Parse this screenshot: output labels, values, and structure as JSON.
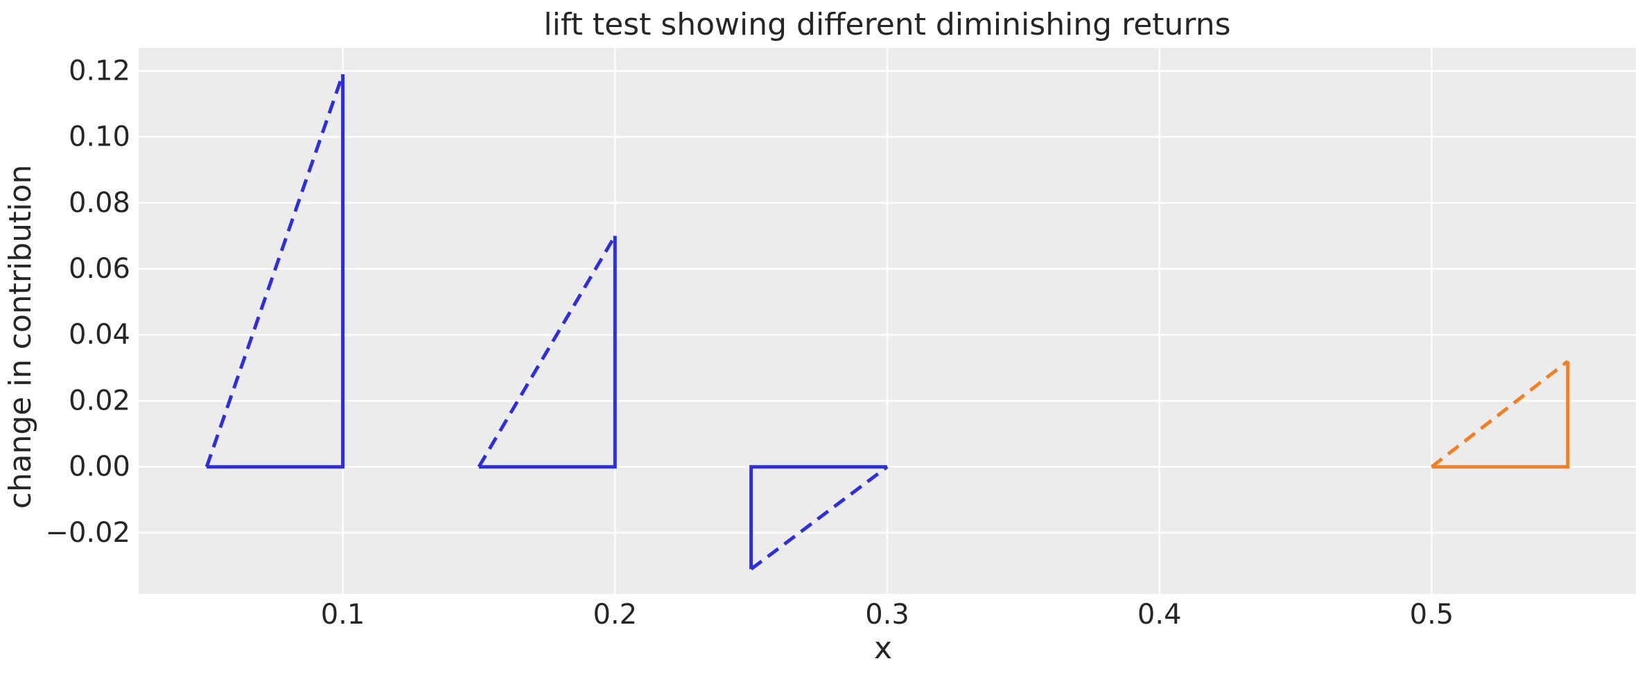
{
  "page": {
    "background_color": "#ffffff"
  },
  "chart_data": {
    "type": "line",
    "title": "lift test showing different diminishing returns",
    "xlabel": "x",
    "ylabel": "change in contribution",
    "xlim": [
      0.025,
      0.575
    ],
    "ylim": [
      -0.0385,
      0.127
    ],
    "grid": true,
    "legend": "none",
    "plot_bg_color": "#ececec",
    "grid_color": "#ffffff",
    "text_color": "#262626",
    "blue_color": "#2d2de1",
    "orange_color": "#f57e20",
    "x_ticks": [
      {
        "value": 0.1,
        "label": "0.1"
      },
      {
        "value": 0.2,
        "label": "0.2"
      },
      {
        "value": 0.3,
        "label": "0.3"
      },
      {
        "value": 0.4,
        "label": "0.4"
      },
      {
        "value": 0.5,
        "label": "0.5"
      }
    ],
    "y_ticks": [
      {
        "value": 0.12,
        "label": "0.12"
      },
      {
        "value": 0.1,
        "label": "0.10"
      },
      {
        "value": 0.08,
        "label": "0.08"
      },
      {
        "value": 0.06,
        "label": "0.06"
      },
      {
        "value": 0.04,
        "label": "0.04"
      },
      {
        "value": 0.02,
        "label": "0.02"
      },
      {
        "value": 0.0,
        "label": "0.00"
      },
      {
        "value": -0.02,
        "label": "−0.02"
      }
    ],
    "series": [
      {
        "name": "lift-triangle-1",
        "color": "#2d2de1",
        "x_start": 0.05,
        "x_end": 0.1,
        "change_in_contribution": 0.119,
        "segments": [
          {
            "style": "solid",
            "points": [
              [
                0.05,
                0
              ],
              [
                0.1,
                0
              ],
              [
                0.1,
                0.119
              ]
            ]
          },
          {
            "style": "dashed",
            "points": [
              [
                0.05,
                0
              ],
              [
                0.1,
                0.119
              ]
            ]
          }
        ]
      },
      {
        "name": "lift-triangle-2",
        "color": "#2d2de1",
        "x_start": 0.15,
        "x_end": 0.2,
        "change_in_contribution": 0.07,
        "segments": [
          {
            "style": "solid",
            "points": [
              [
                0.15,
                0
              ],
              [
                0.2,
                0
              ],
              [
                0.2,
                0.07
              ]
            ]
          },
          {
            "style": "dashed",
            "points": [
              [
                0.15,
                0
              ],
              [
                0.2,
                0.07
              ]
            ]
          }
        ]
      },
      {
        "name": "lift-triangle-3",
        "color": "#2d2de1",
        "x_start": 0.25,
        "x_end": 0.3,
        "change_in_contribution": -0.031,
        "segments": [
          {
            "style": "solid",
            "points": [
              [
                0.25,
                -0.031
              ],
              [
                0.25,
                0
              ],
              [
                0.3,
                0
              ]
            ]
          },
          {
            "style": "dashed",
            "points": [
              [
                0.25,
                -0.031
              ],
              [
                0.3,
                0
              ]
            ]
          }
        ]
      },
      {
        "name": "lift-triangle-4",
        "color": "#f57e20",
        "x_start": 0.5,
        "x_end": 0.55,
        "change_in_contribution": 0.032,
        "segments": [
          {
            "style": "solid",
            "points": [
              [
                0.5,
                0
              ],
              [
                0.55,
                0
              ],
              [
                0.55,
                0.032
              ]
            ]
          },
          {
            "style": "dashed",
            "points": [
              [
                0.5,
                0
              ],
              [
                0.55,
                0.032
              ]
            ]
          }
        ]
      }
    ]
  }
}
